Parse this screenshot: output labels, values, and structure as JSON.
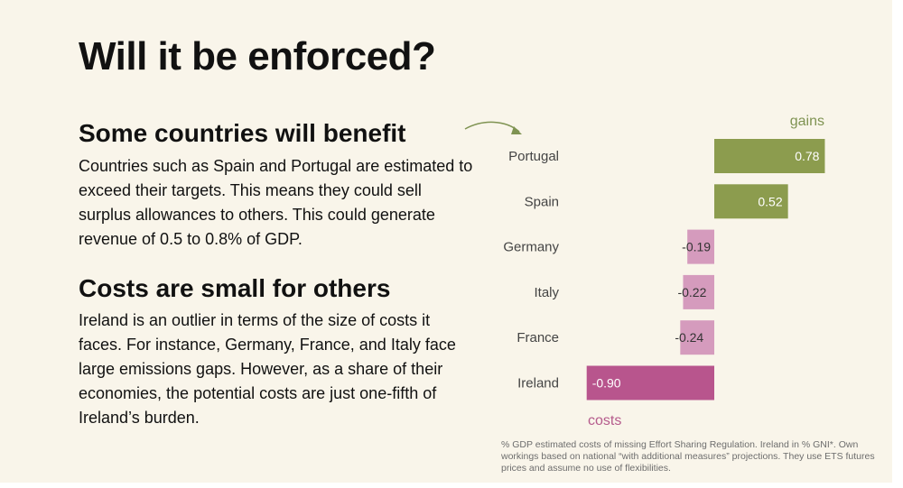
{
  "slide": {
    "title": "Will it be enforced?",
    "section1": {
      "heading": "Some countries will benefit",
      "text": "Countries such as Spain and Portugal are estimated to exceed their targets. This means they could sell surplus allowances to others. This could generate revenue of 0.5 to 0.8% of GDP."
    },
    "section2": {
      "heading": "Costs are small for others",
      "text": "Ireland is an outlier in terms of the size of costs it faces. For instance, Germany, France, and Italy face large emissions gaps. However, as a share of their economies, the potential costs are just one-fifth of Ireland’s burden."
    },
    "footnote": "% GDP estimated costs of missing Effort Sharing Regulation. Ireland in % GNI*. Own workings based on national “with additional measures” projections. They use ETS futures prices and assume no use of flexibilities."
  },
  "chart_data": {
    "type": "bar",
    "orientation": "horizontal",
    "categories": [
      "Portugal",
      "Spain",
      "Germany",
      "Italy",
      "France",
      "Ireland"
    ],
    "values": [
      0.78,
      0.52,
      -0.19,
      -0.22,
      -0.24,
      -0.9
    ],
    "labels": [
      "0.78",
      "0.52",
      "-0.19",
      "-0.22",
      "-0.24",
      "-0.90"
    ],
    "annotations": {
      "positive": "gains",
      "negative": "costs"
    },
    "xlim": [
      -0.9,
      0.78
    ],
    "colors": {
      "gain": "#8c9c4e",
      "cost_small": "#d59bbd",
      "cost_large": "#b8558d",
      "gains_text": "#7f9352",
      "costs_text": "#b55b8c",
      "arrow": "#7f9352"
    }
  }
}
